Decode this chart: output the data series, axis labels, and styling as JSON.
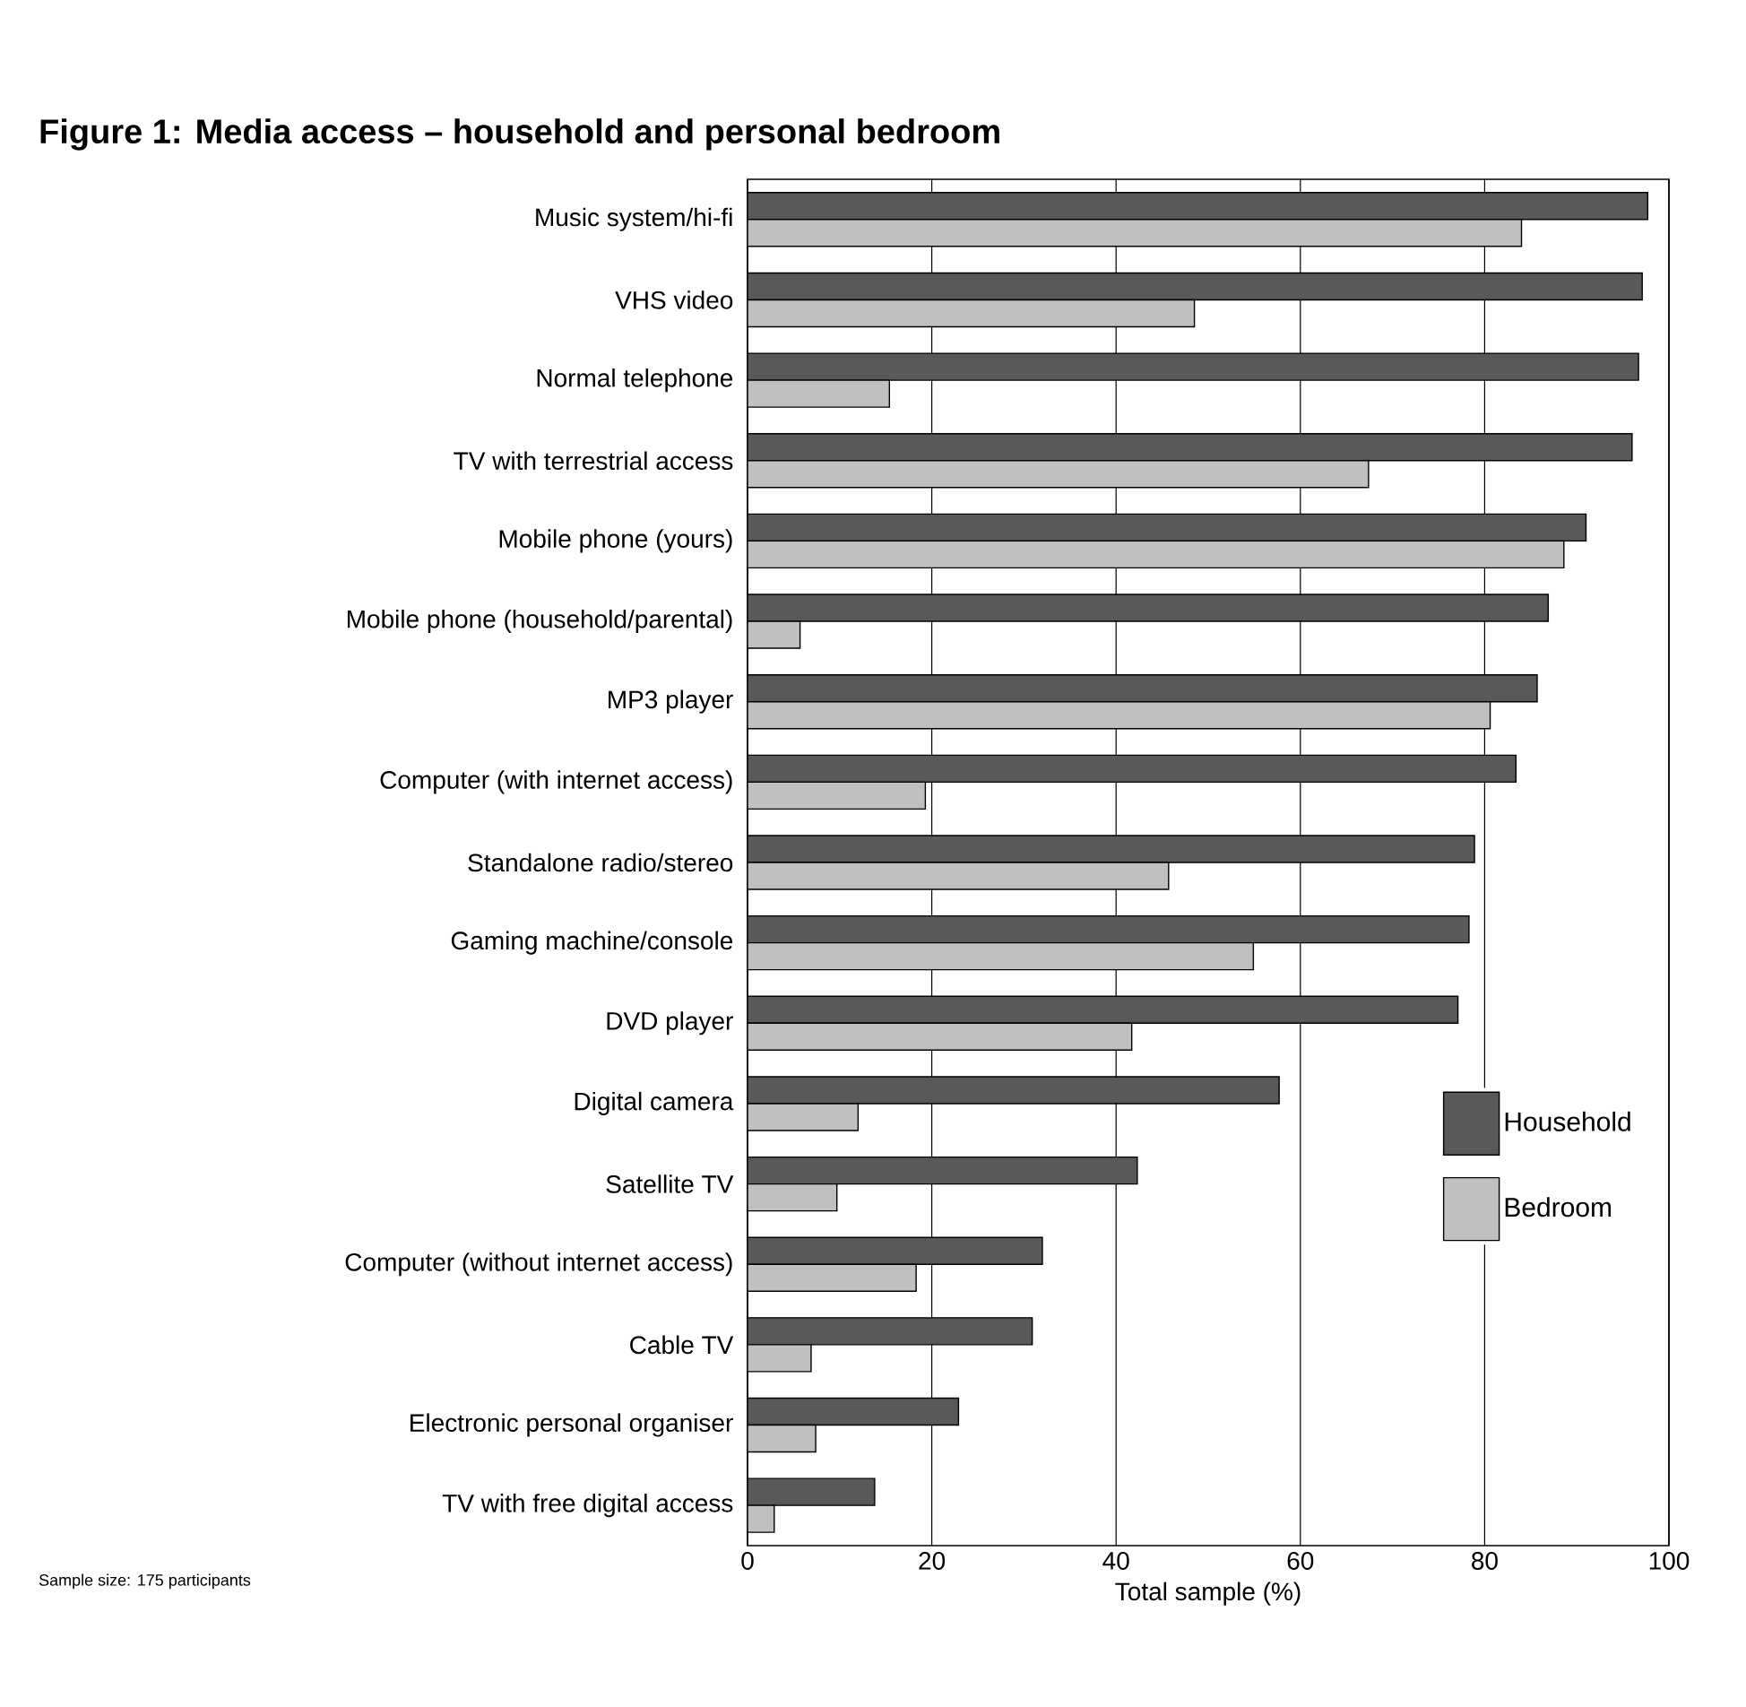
{
  "chart_data": {
    "type": "bar",
    "orientation": "horizontal",
    "title": "Figure 1: Media access – household and personal bedroom",
    "xlabel": "Total sample (%)",
    "categories": [
      "Music system/hi-fi",
      "VHS video",
      "Normal telephone",
      "TV with terrestrial access",
      "Mobile phone (yours)",
      "Mobile phone (household/parental)",
      "MP3 player",
      "Computer (with internet access)",
      "Standalone radio/stereo",
      "Gaming machine/console",
      "DVD player",
      "Digital camera",
      "Satellite TV",
      "Computer (without internet access)",
      "Cable TV",
      "Electronic personal organiser",
      "TV with free digital access"
    ],
    "series": [
      {
        "name": "Household",
        "color": "#595959",
        "values": [
          97.7,
          97.1,
          96.7,
          96.0,
          91.0,
          86.9,
          85.7,
          83.4,
          78.9,
          78.3,
          77.1,
          57.7,
          42.3,
          32.0,
          30.9,
          22.9,
          13.8
        ]
      },
      {
        "name": "Bedroom",
        "color": "#c0c0c0",
        "values": [
          84.0,
          48.5,
          15.4,
          67.4,
          88.6,
          5.7,
          80.6,
          19.3,
          45.7,
          54.9,
          41.7,
          12.0,
          9.7,
          18.3,
          6.9,
          7.4,
          2.9
        ]
      }
    ],
    "xlim": [
      0,
      100
    ],
    "xticks": [
      0,
      20,
      40,
      60,
      80,
      100
    ],
    "grid": "x",
    "legend": "bottom right",
    "annotations": [
      "Sample size: 175 participants"
    ]
  }
}
